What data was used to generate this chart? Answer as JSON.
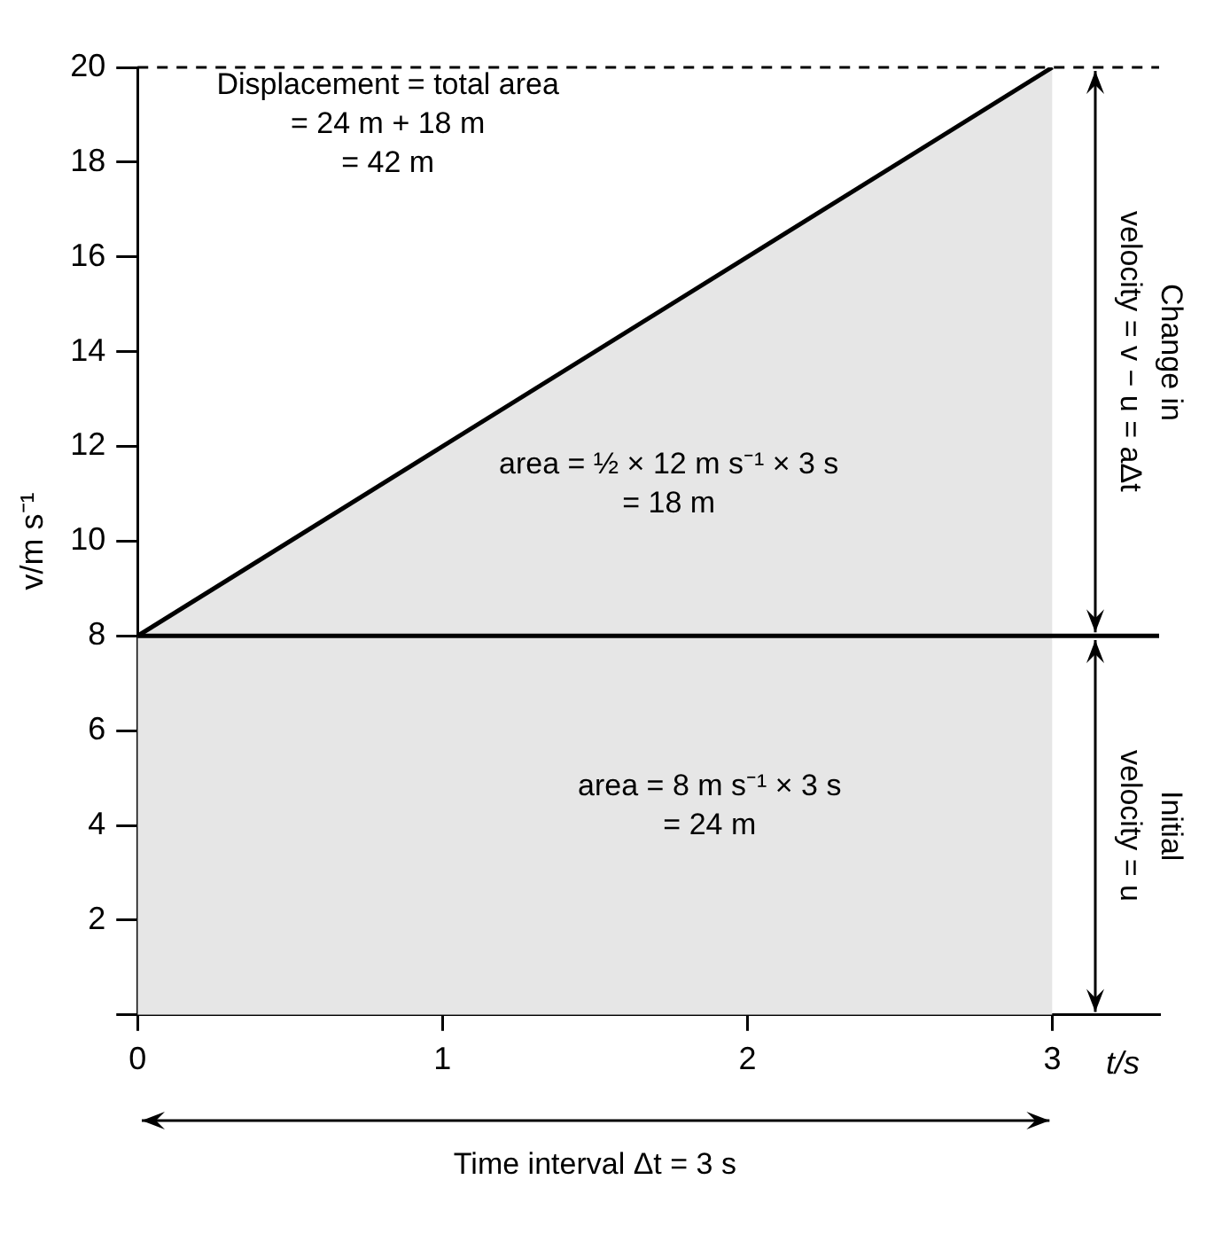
{
  "chart_data": {
    "type": "area",
    "xlabel": "t/s",
    "ylabel": "v/m s⁻¹",
    "x": [
      0,
      3
    ],
    "series": [
      {
        "color": "#e6e6e6",
        "values": [
          8,
          20
        ]
      }
    ],
    "xlim": [
      0,
      3.35
    ],
    "xticks": [
      0,
      1,
      2,
      3
    ],
    "ylim": [
      0,
      20
    ],
    "yticks": [
      {
        "value": 0,
        "label": null
      },
      2,
      4,
      6,
      8,
      10,
      12,
      14,
      16,
      18,
      20
    ],
    "grid": false,
    "legend": false,
    "marker": "none",
    "ref_lines": [
      {
        "axis": "y",
        "value": 8,
        "color": "#000000",
        "line_style": "solid"
      },
      {
        "axis": "y",
        "value": 20,
        "color": "#000000",
        "line_style": "dashed"
      }
    ],
    "annotations": [
      "Displacement = total area\n= 24 m + 18 m\n= 42 m",
      "area = ½ × 12 m s⁻¹ × 3 s\n= 18 m",
      "area = 8 m s⁻¹ × 3 s\n= 24 m",
      "Change in\nvelocity = v − u = aΔt",
      "Initial\nvelocity = u",
      "Time interval Δt = 3 s"
    ]
  }
}
